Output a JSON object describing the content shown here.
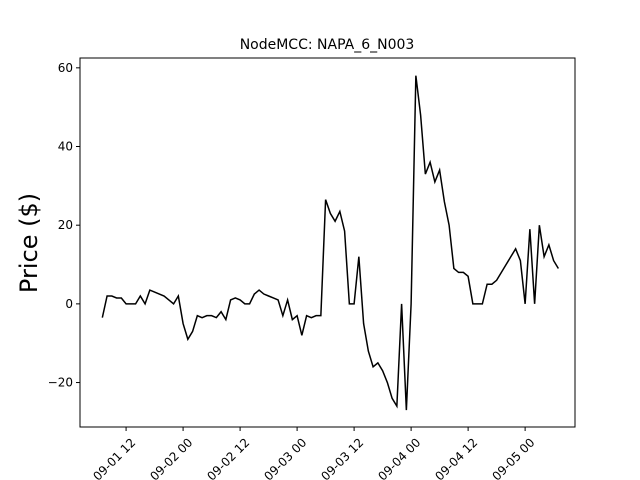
{
  "chart_data": {
    "type": "line",
    "title": "NodeMCC: NAPA_6_N003",
    "y_label": "Price ($)",
    "x": [
      7,
      8,
      9,
      10,
      11,
      12,
      13,
      14,
      15,
      16,
      17,
      18,
      19,
      20,
      21,
      22,
      23,
      24,
      25,
      26,
      27,
      28,
      29,
      30,
      31,
      32,
      33,
      34,
      35,
      36,
      37,
      38,
      39,
      40,
      41,
      42,
      43,
      44,
      45,
      46,
      47,
      48,
      49,
      50,
      51,
      52,
      53,
      54,
      55,
      56,
      57,
      58,
      59,
      60,
      61,
      62,
      63,
      64,
      65,
      66,
      67,
      68,
      69,
      70,
      71,
      72,
      73,
      74,
      75,
      76,
      77,
      78,
      79,
      80,
      81,
      82,
      83,
      84,
      85,
      86,
      87,
      88,
      89,
      90,
      91,
      92,
      93,
      94,
      95,
      96,
      97,
      98,
      99,
      100,
      101,
      102,
      103
    ],
    "series": [
      {
        "name": "price",
        "color": "#000000",
        "values": [
          -3.5,
          2,
          2,
          1.5,
          1.5,
          0,
          0,
          0,
          2,
          0,
          3.5,
          3,
          2.5,
          2,
          1,
          0,
          2,
          -5,
          -9,
          -7,
          -3,
          -3.5,
          -3,
          -3,
          -3.5,
          -2,
          -4,
          1,
          1.5,
          1,
          0,
          0,
          2.5,
          3.5,
          2.5,
          2,
          1.5,
          1,
          -3,
          1,
          -4,
          -3,
          -8,
          -3,
          -3.5,
          -3,
          -3,
          26.5,
          23,
          21,
          23.5,
          18.5,
          0,
          0,
          12,
          -5,
          -12,
          -16,
          -15,
          -17,
          -20,
          -24,
          -26,
          0,
          -27,
          0,
          58,
          48,
          33,
          36,
          31,
          34,
          26,
          20,
          9,
          8,
          8,
          7,
          0,
          0,
          0,
          5,
          5,
          6,
          8,
          10,
          12,
          14,
          11,
          0,
          19,
          0,
          20,
          12,
          15,
          11,
          9
        ]
      }
    ],
    "xlim": [
      2.3,
      106.5
    ],
    "ylim": [
      -31.3,
      62.5
    ],
    "xticks": [
      {
        "value": 12,
        "label": "09-01 12"
      },
      {
        "value": 24,
        "label": "09-02 00"
      },
      {
        "value": 36,
        "label": "09-02 12"
      },
      {
        "value": 48,
        "label": "09-03 00"
      },
      {
        "value": 60,
        "label": "09-03 12"
      },
      {
        "value": 72,
        "label": "09-04 00"
      },
      {
        "value": 84,
        "label": "09-04 12"
      },
      {
        "value": 96,
        "label": "09-05 00"
      }
    ],
    "yticks": [
      {
        "value": -20,
        "label": "−20"
      },
      0,
      20,
      40,
      60
    ]
  }
}
